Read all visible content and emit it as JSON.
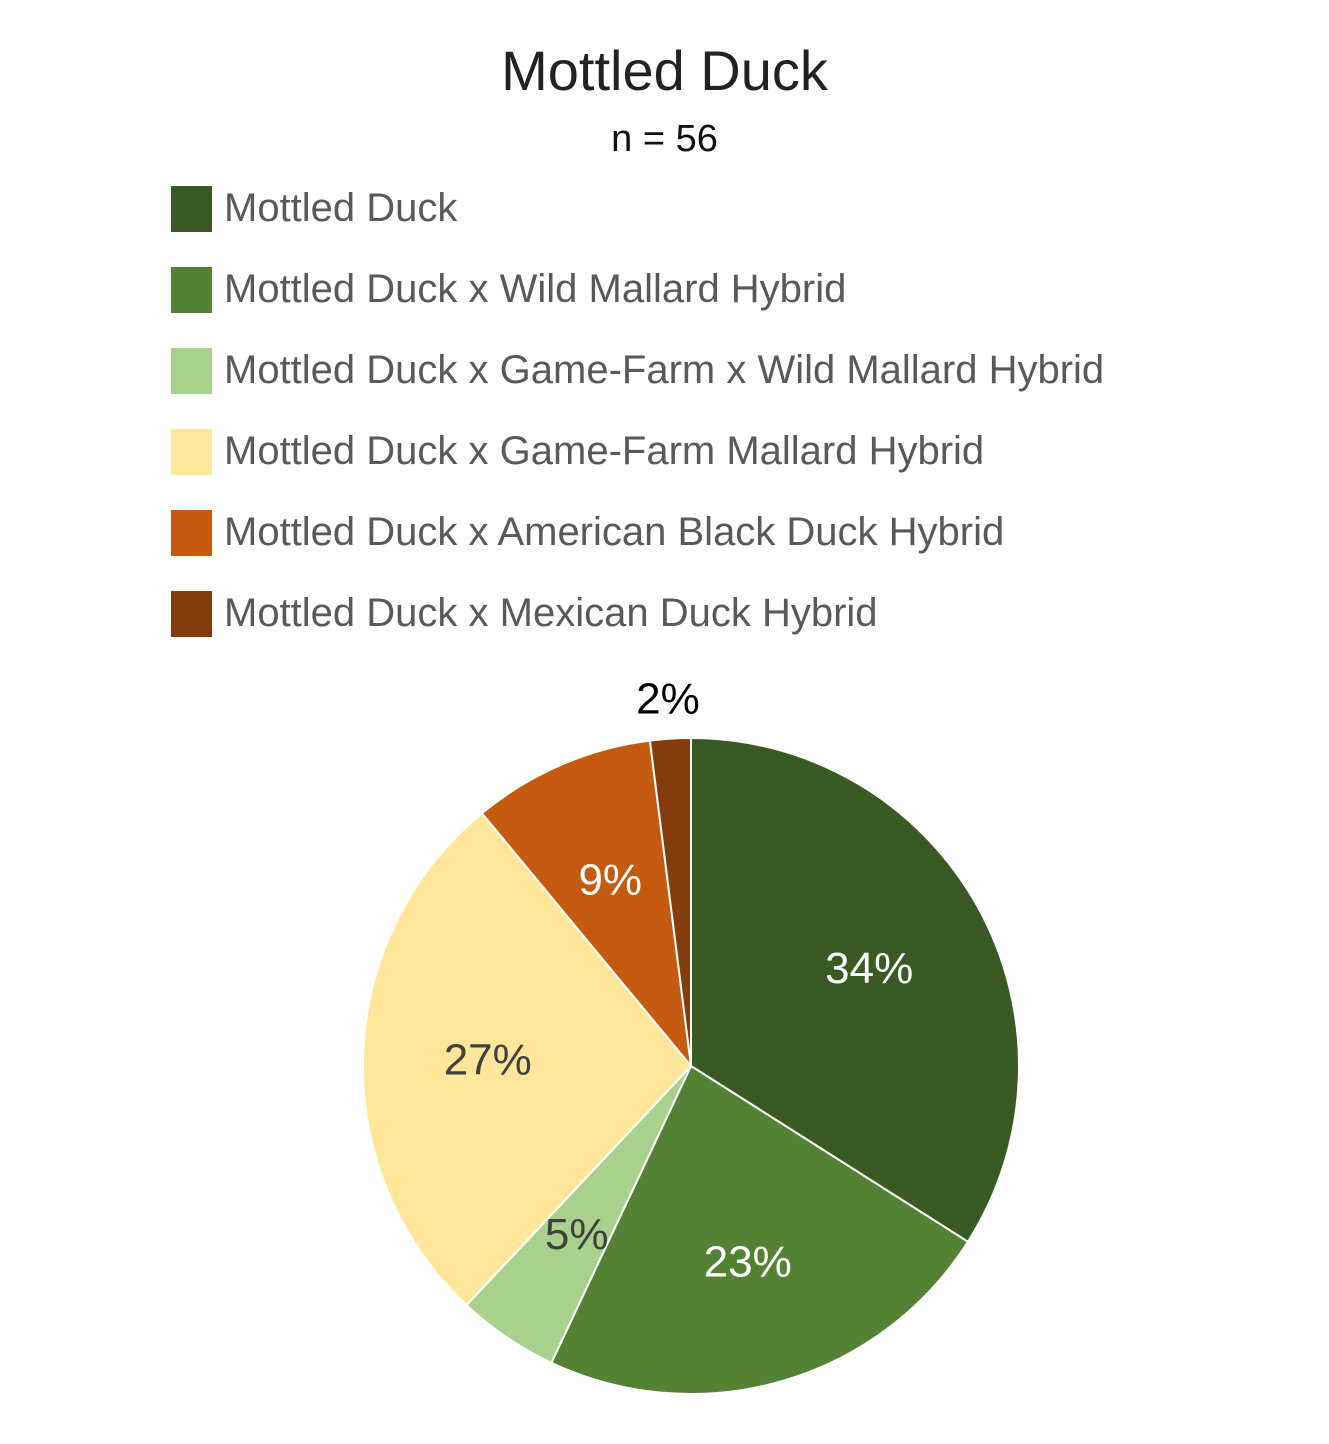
{
  "chart_data": {
    "type": "pie",
    "title": "Mottled Duck",
    "subtitle": "n =  56",
    "legend_position": "top",
    "series": [
      {
        "name": "Mottled Duck",
        "value": 34,
        "label": "34%",
        "color": "#3a5a24",
        "label_color": "#ffffff"
      },
      {
        "name": "Mottled Duck x Wild Mallard Hybrid",
        "value": 23,
        "label": "23%",
        "color": "#548235",
        "label_color": "#ffffff"
      },
      {
        "name": "Mottled Duck x Game-Farm x Wild Mallard Hybrid",
        "value": 5,
        "label": "5%",
        "color": "#a9d18e",
        "label_color": "#404040"
      },
      {
        "name": "Mottled Duck x Game-Farm Mallard Hybrid",
        "value": 27,
        "label": "27%",
        "color": "#ffe699",
        "label_color": "#404040"
      },
      {
        "name": "Mottled Duck x American Black Duck Hybrid",
        "value": 9,
        "label": "9%",
        "color": "#c55a11",
        "label_color": "#ffffff"
      },
      {
        "name": "Mottled Duck x Mexican Duck Hybrid",
        "value": 2,
        "label": "2%",
        "color": "#843c0c",
        "label_color": "#000000"
      }
    ]
  }
}
